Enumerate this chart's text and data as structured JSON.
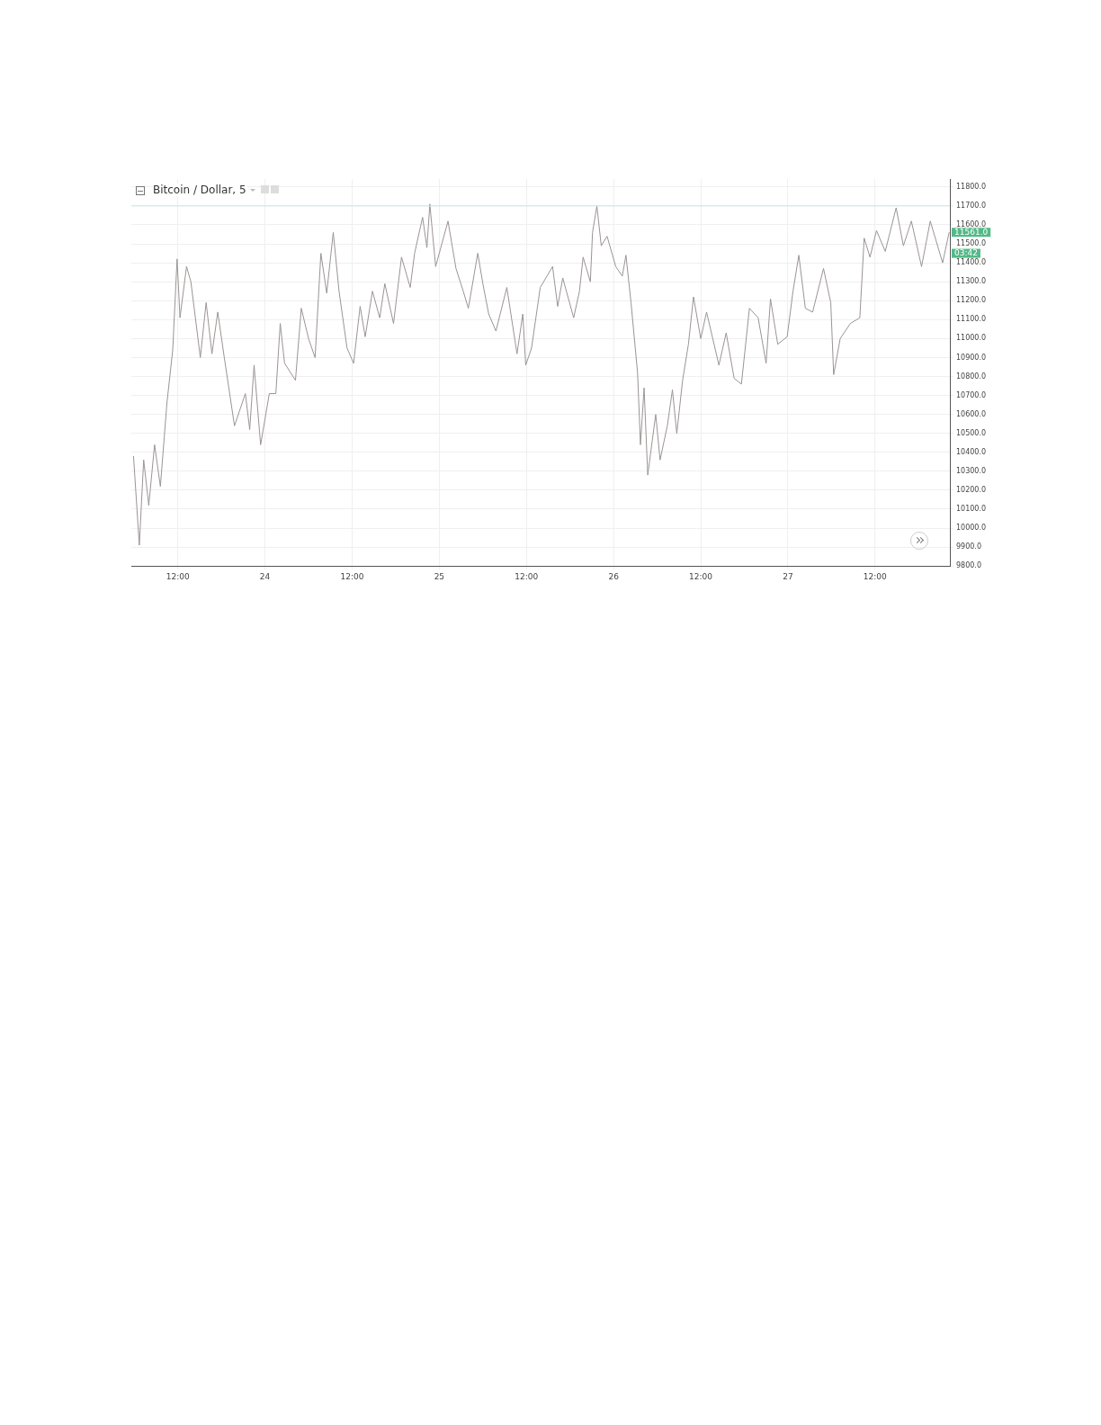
{
  "chart_data": {
    "type": "line",
    "title": "Bitcoin / Dollar, 5",
    "xlim": [
      "--01-23T05:36",
      "--01-27T22:18"
    ],
    "ylim": [
      9800,
      11842
    ],
    "xticks": [
      {
        "value": "--01-23T12:00",
        "label": "12:00"
      },
      {
        "value": "--01-24",
        "label": "24"
      },
      {
        "value": "--01-24T12:00",
        "label": "12:00"
      },
      {
        "value": "--01-25",
        "label": "25"
      },
      {
        "value": "--01-25T12:00",
        "label": "12:00"
      },
      {
        "value": "--01-26",
        "label": "26"
      },
      {
        "value": "--01-26T12:00",
        "label": "12:00"
      },
      {
        "value": "--01-27",
        "label": "27"
      },
      {
        "value": "--01-27T12:00",
        "label": "12:00"
      }
    ],
    "yticks": [
      {
        "value": 9800,
        "label": "9800.0"
      },
      {
        "value": 9900,
        "label": "9900.0"
      },
      {
        "value": 10000,
        "label": "10000.0"
      },
      {
        "value": 10100,
        "label": "10100.0"
      },
      {
        "value": 10200,
        "label": "10200.0"
      },
      {
        "value": 10300,
        "label": "10300.0"
      },
      {
        "value": 10400,
        "label": "10400.0"
      },
      {
        "value": 10500,
        "label": "10500.0"
      },
      {
        "value": 10600,
        "label": "10600.0"
      },
      {
        "value": 10700,
        "label": "10700.0"
      },
      {
        "value": 10800,
        "label": "10800.0"
      },
      {
        "value": 10900,
        "label": "10900.0"
      },
      {
        "value": 11000,
        "label": "11000.0"
      },
      {
        "value": 11100,
        "label": "11100.0"
      },
      {
        "value": 11200,
        "label": "11200.0"
      },
      {
        "value": 11300,
        "label": "11300.0"
      },
      {
        "value": 11400,
        "label": "11400.0"
      },
      {
        "value": 11500,
        "label": "11500.0"
      },
      {
        "value": 11600,
        "label": "11600.0"
      },
      {
        "value": 11700,
        "label": "11700.0"
      },
      {
        "value": 11800,
        "label": "11800.0"
      }
    ],
    "grid": true,
    "marker": "none",
    "line_style": "solid",
    "ref_lines": [
      {
        "axis": "y",
        "value": 11700,
        "color": "#cfe6e8"
      }
    ],
    "annotations": [
      {
        "text": "11561.0",
        "x": "--01-27T22:12",
        "y": 11561
      },
      "03:42"
    ],
    "series": [
      {
        "color": "#9c9494",
        "x": [
          "--01-23T05:54",
          "--01-23T06:42",
          "--01-23T07:18",
          "--01-23T08:00",
          "--01-23T08:48",
          "--01-23T09:36",
          "--01-23T10:30",
          "--01-23T11:18",
          "--01-23T11:54",
          "--01-23T12:18",
          "--01-23T13:12",
          "--01-23T13:48",
          "--01-23T15:06",
          "--01-23T15:54",
          "--01-23T16:42",
          "--01-23T17:30",
          "--01-23T18:24",
          "--01-23T19:48",
          "--01-23T21:18",
          "--01-23T21:54",
          "--01-23T22:30",
          "--01-23T23:24",
          "--01-24T00:36",
          "--01-24T01:30",
          "--01-24T02:06",
          "--01-24T02:42",
          "--01-24T04:12",
          "--01-24T05:00",
          "--01-24T06:00",
          "--01-24T06:54",
          "--01-24T07:42",
          "--01-24T08:30",
          "--01-24T09:24",
          "--01-24T10:12",
          "--01-24T11:18",
          "--01-24T12:12",
          "--01-24T13:06",
          "--01-24T13:48",
          "--01-24T14:48",
          "--01-24T15:48",
          "--01-24T16:30",
          "--01-24T17:42",
          "--01-24T18:48",
          "--01-24T20:00",
          "--01-24T20:36",
          "--01-24T21:42",
          "--01-24T22:18",
          "--01-24T22:42",
          "--01-24T23:30",
          "--01-25T01:12",
          "--01-25T02:18",
          "--01-25T03:18",
          "--01-25T04:00",
          "--01-25T05:18",
          "--01-25T06:00",
          "--01-25T06:48",
          "--01-25T07:48",
          "--01-25T09:18",
          "--01-25T10:42",
          "--01-25T11:30",
          "--01-25T11:54",
          "--01-25T12:42",
          "--01-25T13:54",
          "--01-25T15:36",
          "--01-25T16:18",
          "--01-25T17:00",
          "--01-25T18:30",
          "--01-25T19:18",
          "--01-25T19:48",
          "--01-25T20:48",
          "--01-25T21:06",
          "--01-25T21:42",
          "--01-25T22:18",
          "--01-25T23:06",
          "--01-26T00:18",
          "--01-26T01:12",
          "--01-26T01:42",
          "--01-26T02:24",
          "--01-26T03:18",
          "--01-26T03:42",
          "--01-26T04:12",
          "--01-26T04:42",
          "--01-26T05:48",
          "--01-26T06:24",
          "--01-26T07:24",
          "--01-26T08:06",
          "--01-26T08:42",
          "--01-26T09:30",
          "--01-26T10:18",
          "--01-26T11:00",
          "--01-26T12:00",
          "--01-26T12:48",
          "--01-26T14:30",
          "--01-26T15:30",
          "--01-26T16:36",
          "--01-26T17:36",
          "--01-26T18:42",
          "--01-26T19:54",
          "--01-26T21:00",
          "--01-26T21:36",
          "--01-26T22:36",
          "--01-26T23:54",
          "--01-27T00:42",
          "--01-27T01:30",
          "--01-27T02:24",
          "--01-27T03:24",
          "--01-27T04:54",
          "--01-27T05:54",
          "--01-27T06:18",
          "--01-27T07:12",
          "--01-27T08:36",
          "--01-27T09:54",
          "--01-27T10:30",
          "--01-27T11:18",
          "--01-27T12:12",
          "--01-27T13:24",
          "--01-27T14:54",
          "--01-27T15:54",
          "--01-27T17:00",
          "--01-27T18:24",
          "--01-27T19:36",
          "--01-27T21:18",
          "--01-27T22:12"
        ],
        "values": [
          10380,
          9910,
          10360,
          10120,
          10440,
          10220,
          10660,
          10940,
          11420,
          11110,
          11380,
          11300,
          10900,
          11190,
          10920,
          11140,
          10900,
          10540,
          10710,
          10520,
          10860,
          10440,
          10710,
          10710,
          11080,
          10870,
          10780,
          11160,
          11000,
          10900,
          11450,
          11240,
          11560,
          11250,
          10950,
          10870,
          11170,
          11010,
          11250,
          11110,
          11290,
          11080,
          11430,
          11270,
          11450,
          11640,
          11480,
          11710,
          11380,
          11620,
          11370,
          11250,
          11160,
          11450,
          11290,
          11130,
          11040,
          11270,
          10920,
          11130,
          10860,
          10950,
          11270,
          11380,
          11170,
          11320,
          11110,
          11250,
          11430,
          11300,
          11560,
          11700,
          11490,
          11540,
          11380,
          11330,
          11440,
          11190,
          10820,
          10440,
          10740,
          10280,
          10600,
          10360,
          10540,
          10730,
          10500,
          10780,
          10970,
          11220,
          11000,
          11140,
          10860,
          11030,
          10790,
          10760,
          11160,
          11110,
          10870,
          11210,
          10970,
          11010,
          11250,
          11440,
          11160,
          11140,
          11370,
          11190,
          10810,
          11000,
          11080,
          11110,
          11530,
          11430,
          11570,
          11460,
          11690,
          11490,
          11620,
          11380,
          11620,
          11400,
          11561
        ]
      }
    ]
  }
}
